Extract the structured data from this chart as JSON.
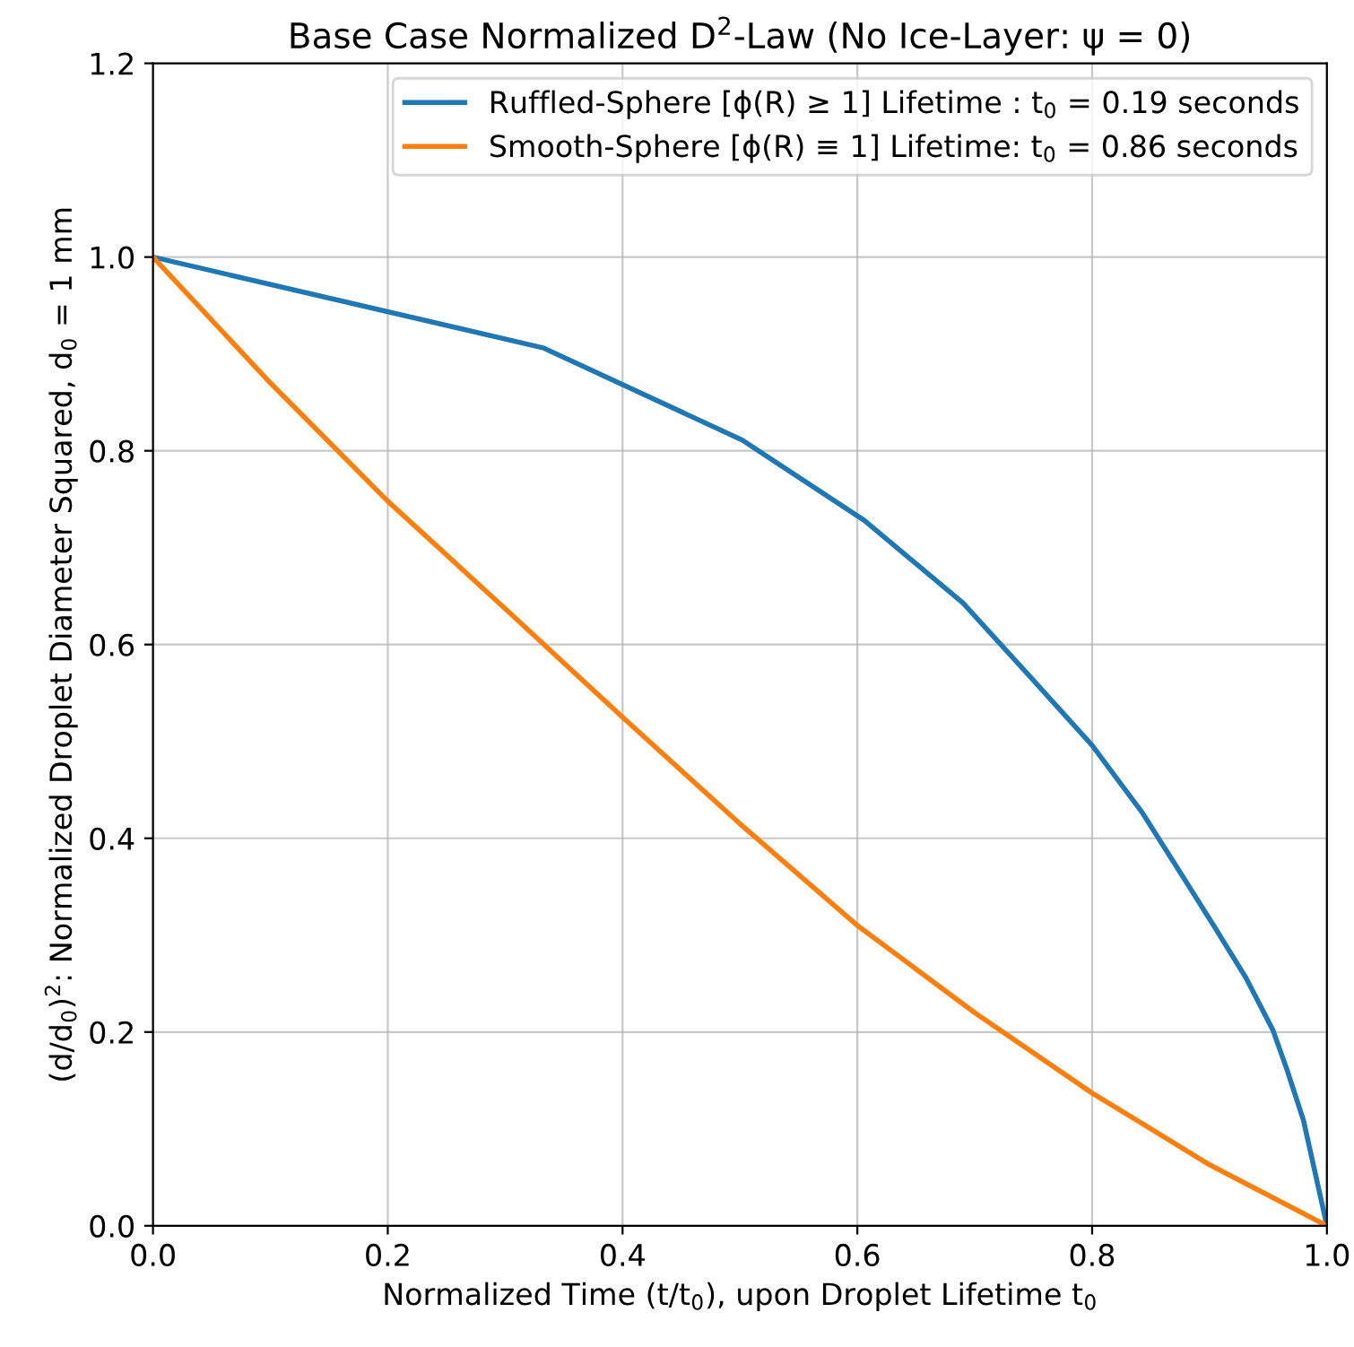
{
  "chart_data": {
    "type": "line",
    "title": "Base Case Normalized D$^{2}$-Law (No Ice-Layer: ψ = 0)",
    "xlabel": "Normalized Time (t/t$_{0}$), upon Droplet Lifetime t$_{0}$",
    "ylabel": "(d/d$_{0}$)$^{2}$: Normalized Droplet Diameter Squared, d$_{0}$ = 1 mm",
    "series": [
      {
        "name": "Ruffled-Sphere [ϕ(R) ≥ 1] Lifetime : t$_{0}$ = 0.19 seconds",
        "color": "#1f77b4",
        "x": [
          0,
          0.333,
          0.502,
          0.606,
          0.69,
          0.75,
          0.8,
          0.843,
          0.878,
          0.904,
          0.931,
          0.954,
          0.966,
          0.98,
          1.0
        ],
        "values": [
          1.0,
          0.906,
          0.811,
          0.728,
          0.643,
          0.563,
          0.496,
          0.426,
          0.359,
          0.309,
          0.256,
          0.202,
          0.161,
          0.109,
          0.0
        ]
      },
      {
        "name": "Smooth-Sphere [ϕ(R) ≡ 1] Lifetime: t$_{0}$ = 0.86 seconds",
        "color": "#ff7f0e",
        "x": [
          0,
          0.1,
          0.2,
          0.3,
          0.4,
          0.5,
          0.6,
          0.7,
          0.8,
          0.9,
          1.0
        ],
        "values": [
          1.0,
          0.87,
          0.748,
          0.637,
          0.525,
          0.415,
          0.31,
          0.22,
          0.137,
          0.063,
          0.0
        ]
      }
    ],
    "xlim": [
      0,
      1
    ],
    "ylim": [
      0,
      1.2
    ],
    "xticks": [
      {
        "value": 0,
        "label": "0.0"
      },
      0.2,
      0.4,
      0.6,
      0.8,
      {
        "value": 1,
        "label": "1.0"
      }
    ],
    "yticks": [
      {
        "value": 0,
        "label": "0.0"
      },
      0.2,
      0.4,
      0.6,
      0.8,
      {
        "value": 1,
        "label": "1.0"
      },
      1.2
    ],
    "grid": true,
    "legend": "top right",
    "marker": "none",
    "line_style": "solid"
  }
}
